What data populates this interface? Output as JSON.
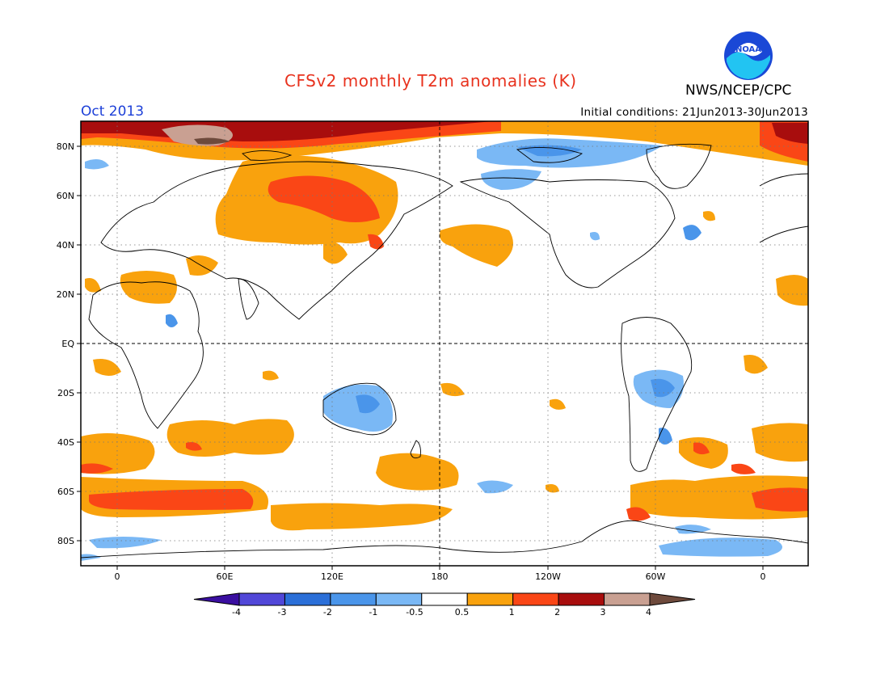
{
  "title": "CFSv2 monthly T2m anomalies (K)",
  "org": "NWS/NCEP/CPC",
  "logo_text": "NOAA",
  "valid_month": "Oct 2013",
  "init_conditions": "Initial conditions: 21Jun2013-30Jun2013",
  "map": {
    "lat_labels": [
      "80N",
      "60N",
      "40N",
      "20N",
      "EQ",
      "20S",
      "40S",
      "60S",
      "80S"
    ],
    "lon_labels": [
      "0",
      "60E",
      "120E",
      "180",
      "120W",
      "60W",
      "0"
    ]
  },
  "colorbar": {
    "labels": [
      "-4",
      "-3",
      "-2",
      "-1",
      "-0.5",
      "0.5",
      "1",
      "2",
      "3",
      "4"
    ],
    "colors": [
      "#3a0fa0",
      "#5147d8",
      "#2b6fd8",
      "#4a95ea",
      "#7ab8f5",
      "#ffffff",
      "#f9a20d",
      "#fa4616",
      "#a80d0d",
      "#c9a092",
      "#6e4a3c"
    ]
  }
}
